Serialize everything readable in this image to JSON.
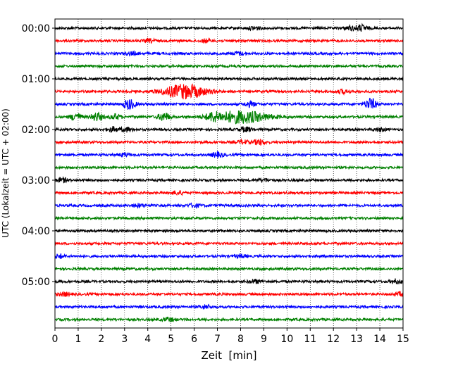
{
  "chart_data": {
    "type": "line",
    "title": "",
    "xlabel": "Zeit  [min]",
    "ylabel": "UTC (Lokalzeit = UTC + 02:00)",
    "xlim": [
      0,
      15
    ],
    "x_ticks": [
      "0",
      "1",
      "2",
      "3",
      "4",
      "5",
      "6",
      "7",
      "8",
      "9",
      "10",
      "11",
      "12",
      "13",
      "14",
      "15"
    ],
    "y_tick_labels": [
      "00:00",
      "01:00",
      "02:00",
      "03:00",
      "04:00",
      "05:00"
    ],
    "y_tick_rows": [
      0,
      4,
      8,
      12,
      16,
      20
    ],
    "grid": "vertical dotted",
    "trace_colors": [
      "#000000",
      "#ff0000",
      "#0000ff",
      "#008000"
    ],
    "traces_count": 24,
    "trace_interval_min": 15,
    "events": [
      {
        "row": 0,
        "x": 8.6,
        "amp": 0.35
      },
      {
        "row": 0,
        "x": 13.2,
        "amp": 0.6
      },
      {
        "row": 0,
        "x": 12.7,
        "amp": 0.35
      },
      {
        "row": 1,
        "x": 4.1,
        "amp": 0.3
      },
      {
        "row": 1,
        "x": 6.5,
        "amp": 0.3
      },
      {
        "row": 2,
        "x": 3.3,
        "amp": 0.3
      },
      {
        "row": 2,
        "x": 7.9,
        "amp": 0.3
      },
      {
        "row": 5,
        "x": 5.6,
        "amp": 1.4,
        "width": 0.9
      },
      {
        "row": 5,
        "x": 12.4,
        "amp": 0.35
      },
      {
        "row": 6,
        "x": 3.2,
        "amp": 1.0
      },
      {
        "row": 6,
        "x": 8.4,
        "amp": 0.45
      },
      {
        "row": 6,
        "x": 13.6,
        "amp": 1.1
      },
      {
        "row": 7,
        "x": 0.9,
        "amp": 0.7
      },
      {
        "row": 7,
        "x": 1.8,
        "amp": 0.8
      },
      {
        "row": 7,
        "x": 2.6,
        "amp": 0.5
      },
      {
        "row": 7,
        "x": 4.7,
        "amp": 0.8
      },
      {
        "row": 7,
        "x": 6.8,
        "amp": 0.6
      },
      {
        "row": 7,
        "x": 8.0,
        "amp": 1.2,
        "width": 1.2
      },
      {
        "row": 8,
        "x": 2.5,
        "amp": 0.45
      },
      {
        "row": 8,
        "x": 3.1,
        "amp": 0.4
      },
      {
        "row": 8,
        "x": 8.2,
        "amp": 0.45
      },
      {
        "row": 8,
        "x": 14.0,
        "amp": 0.35
      },
      {
        "row": 9,
        "x": 8.8,
        "amp": 0.5
      },
      {
        "row": 9,
        "x": 8.1,
        "amp": 0.35
      },
      {
        "row": 10,
        "x": 7.0,
        "amp": 0.5
      },
      {
        "row": 10,
        "x": 3.0,
        "amp": 0.3
      },
      {
        "row": 12,
        "x": 0.3,
        "amp": 0.4
      },
      {
        "row": 12,
        "x": 9.0,
        "amp": 0.3
      },
      {
        "row": 13,
        "x": 5.3,
        "amp": 0.35
      },
      {
        "row": 14,
        "x": 6.0,
        "amp": 0.35
      },
      {
        "row": 14,
        "x": 3.6,
        "amp": 0.3
      },
      {
        "row": 18,
        "x": 0.2,
        "amp": 0.35
      },
      {
        "row": 18,
        "x": 8.0,
        "amp": 0.3
      },
      {
        "row": 20,
        "x": 8.6,
        "amp": 0.35
      },
      {
        "row": 20,
        "x": 14.7,
        "amp": 0.4
      },
      {
        "row": 21,
        "x": 0.4,
        "amp": 0.35
      },
      {
        "row": 21,
        "x": 14.9,
        "amp": 0.35
      },
      {
        "row": 22,
        "x": 6.5,
        "amp": 0.35
      },
      {
        "row": 23,
        "x": 4.9,
        "amp": 0.35
      }
    ]
  }
}
